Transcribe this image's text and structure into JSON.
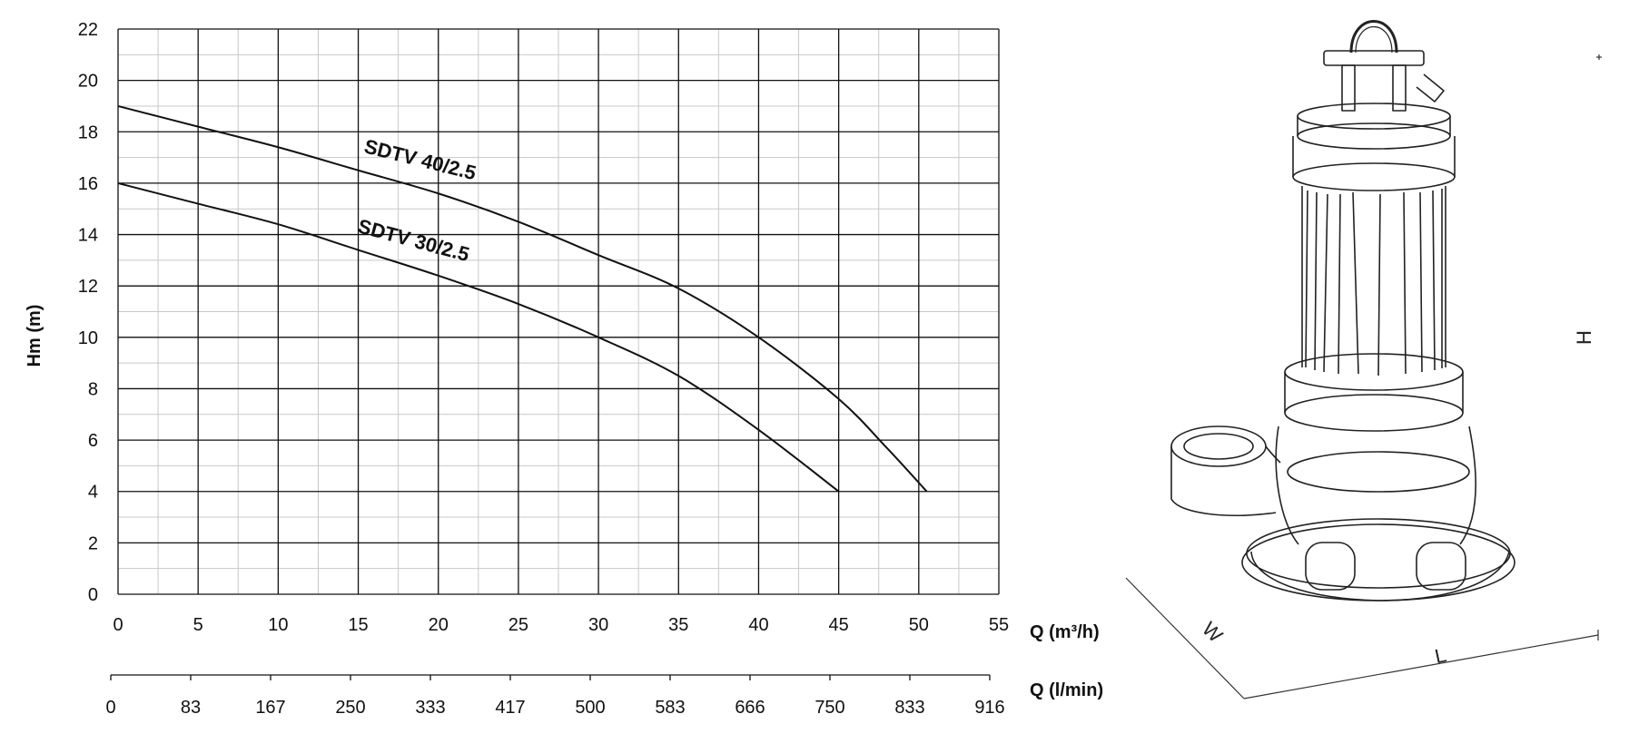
{
  "chart_data": {
    "type": "line",
    "ylabel": "Hm (m)",
    "xlabel": "Q (m³/h)",
    "xlabel2": "Q (l/min)",
    "xlim": [
      0,
      55
    ],
    "ylim": [
      0,
      22
    ],
    "x_ticks": [
      "0",
      "5",
      "10",
      "15",
      "20",
      "25",
      "30",
      "35",
      "40",
      "45",
      "50",
      "55"
    ],
    "y_ticks": [
      "0",
      "2",
      "4",
      "6",
      "8",
      "10",
      "12",
      "14",
      "16",
      "18",
      "20",
      "22"
    ],
    "x2_ticks": [
      "0",
      "83",
      "167",
      "250",
      "333",
      "417",
      "500",
      "583",
      "666",
      "750",
      "833",
      "916"
    ],
    "grid": true,
    "series": [
      {
        "name": "SDTV 40/2.5",
        "x": [
          0,
          5,
          10,
          15,
          20,
          25,
          30,
          35,
          40,
          45,
          48,
          50.5
        ],
        "y": [
          19,
          18.2,
          17.4,
          16.5,
          15.6,
          14.5,
          13.2,
          11.9,
          10,
          7.6,
          5.7,
          4
        ]
      },
      {
        "name": "SDTV 30/2.5",
        "x": [
          0,
          5,
          10,
          15,
          20,
          25,
          30,
          35,
          40,
          45
        ],
        "y": [
          16,
          15.2,
          14.4,
          13.4,
          12.4,
          11.3,
          10,
          8.5,
          6.4,
          4
        ]
      }
    ]
  },
  "drawing": {
    "dim_h": "H",
    "dim_w": "W",
    "dim_l": "L"
  }
}
